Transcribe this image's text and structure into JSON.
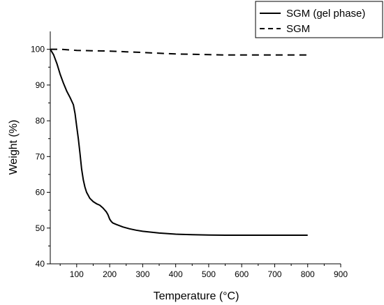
{
  "chart_data": {
    "type": "line",
    "title": "",
    "xlabel": "Temperature (°C)",
    "ylabel": "Weight (%)",
    "xlim": [
      20,
      900
    ],
    "ylim": [
      40,
      105
    ],
    "x_ticks": [
      100,
      200,
      300,
      400,
      500,
      600,
      700,
      800,
      900
    ],
    "y_ticks": [
      40,
      50,
      60,
      70,
      80,
      90,
      100
    ],
    "grid": false,
    "legend_position": "top-right",
    "series": [
      {
        "name": "SGM (gel phase)",
        "line_style": "solid",
        "color": "#000000",
        "x": [
          20,
          30,
          40,
          50,
          60,
          70,
          80,
          90,
          95,
          100,
          105,
          110,
          115,
          120,
          125,
          130,
          140,
          150,
          160,
          170,
          180,
          190,
          195,
          200,
          205,
          210,
          220,
          240,
          260,
          280,
          300,
          350,
          400,
          450,
          500,
          550,
          600,
          700,
          800
        ],
        "y": [
          100,
          98.5,
          96,
          93,
          90.5,
          88.3,
          86.5,
          84.5,
          82,
          78.5,
          75,
          71,
          66.5,
          63.5,
          61.5,
          60,
          58.3,
          57.4,
          56.8,
          56.4,
          55.6,
          54.5,
          53.7,
          52.5,
          51.8,
          51.4,
          51,
          50.3,
          49.8,
          49.4,
          49.1,
          48.6,
          48.3,
          48.15,
          48.05,
          48,
          48,
          48,
          48
        ]
      },
      {
        "name": "SGM",
        "line_style": "dashed",
        "color": "#000000",
        "x": [
          20,
          50,
          100,
          150,
          200,
          250,
          300,
          350,
          400,
          450,
          500,
          550,
          600,
          650,
          700,
          750,
          800
        ],
        "y": [
          100,
          100,
          99.7,
          99.6,
          99.5,
          99.3,
          99.1,
          98.9,
          98.7,
          98.6,
          98.5,
          98.4,
          98.4,
          98.4,
          98.4,
          98.4,
          98.4
        ]
      }
    ]
  }
}
